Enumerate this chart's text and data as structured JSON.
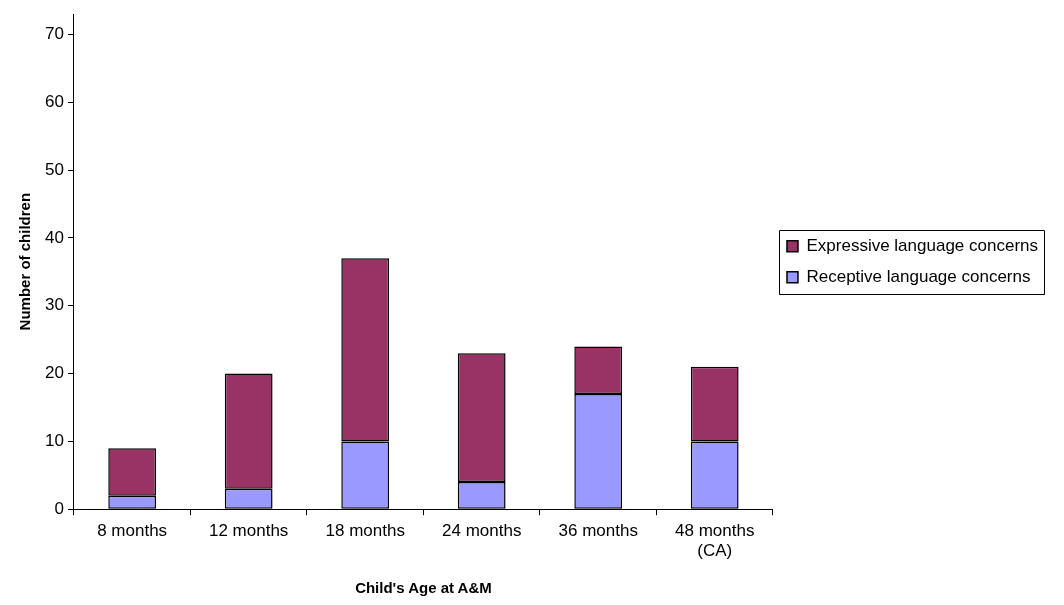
{
  "chart_data": {
    "type": "bar",
    "stacked": true,
    "xlabel": "Child's Age at A&M",
    "ylabel": "Number of children",
    "categories": [
      "8 months",
      "12 months",
      "18 months",
      "24 months",
      "36 months",
      "48 months (CA)"
    ],
    "series": [
      {
        "name": "Receptive language concerns",
        "color": "#9999ff",
        "values": [
          2,
          3,
          10,
          4,
          17,
          10
        ]
      },
      {
        "name": "Expressive language concerns",
        "color": "#993366",
        "values": [
          7,
          17,
          27,
          19,
          7,
          11
        ]
      }
    ],
    "ylim": [
      0,
      73
    ],
    "yticks": [
      0,
      10,
      20,
      30,
      40,
      50,
      60,
      70
    ],
    "grid": false,
    "legend": "right"
  }
}
